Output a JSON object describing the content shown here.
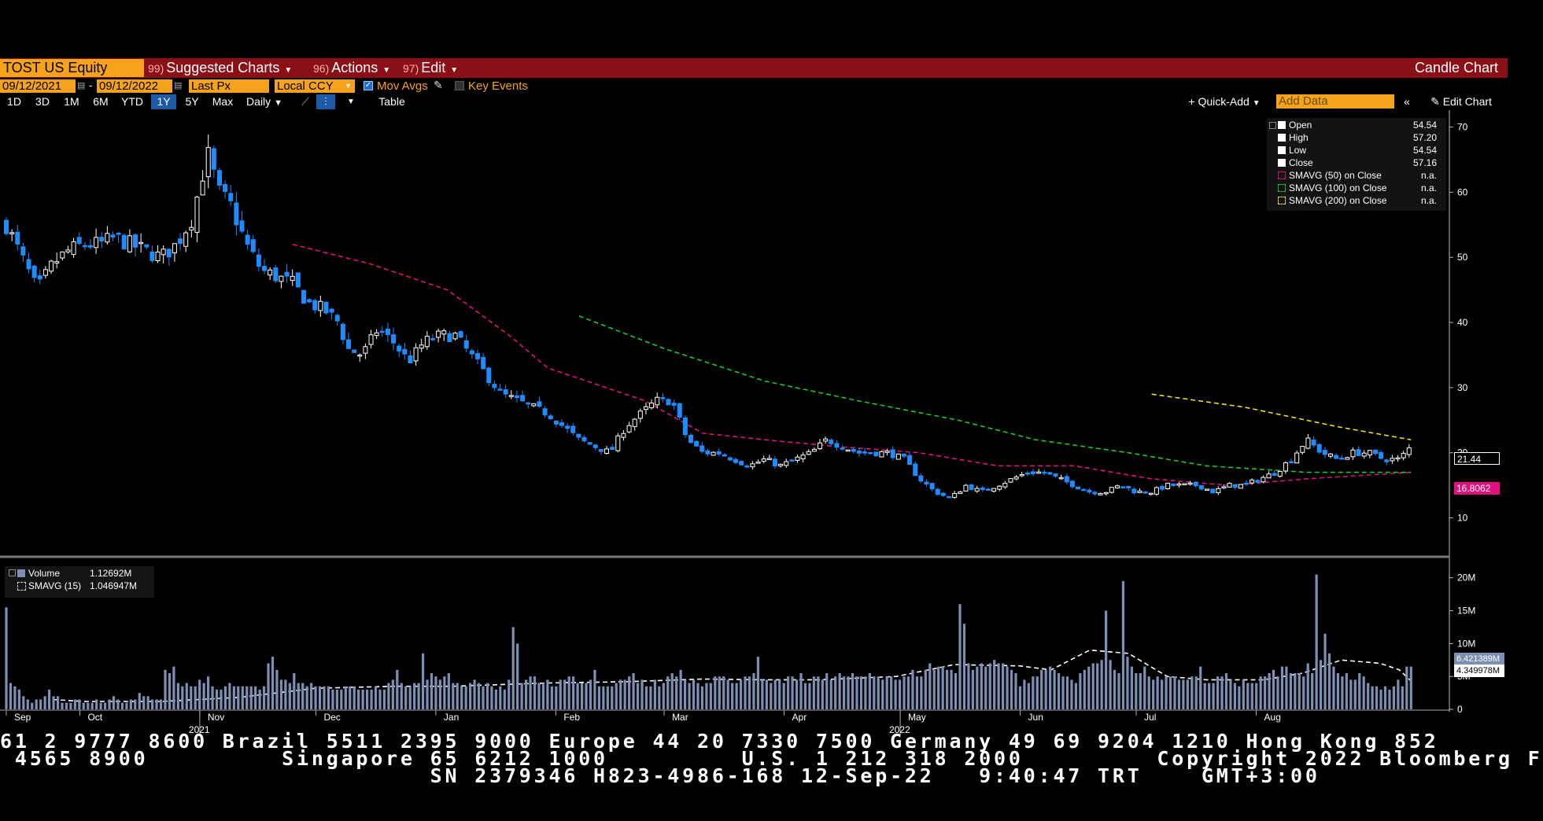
{
  "toolbar": {
    "ticker": "TOST US Equity",
    "suggested_num": "99)",
    "suggested_label": "Suggested Charts",
    "actions_num": "96)",
    "actions_label": "Actions",
    "edit_num": "97)",
    "edit_label": "Edit",
    "chart_type": "Candle Chart"
  },
  "params": {
    "start_date": "09/12/2021",
    "separator": "-",
    "end_date": "09/12/2022",
    "price_field": "Last Px",
    "currency": "Local CCY",
    "mov_avgs_label": "Mov Avgs",
    "mov_avgs_checked": true,
    "key_events_label": "Key Events",
    "key_events_checked": false
  },
  "ranges": {
    "buttons": [
      "1D",
      "3D",
      "1M",
      "6M",
      "YTD",
      "1Y",
      "5Y",
      "Max"
    ],
    "active": "1Y",
    "frequency": "Daily",
    "table_label": "Table",
    "quick_add_label": "Quick-Add",
    "add_data_placeholder": "Add Data",
    "edit_chart_label": "Edit Chart"
  },
  "legend": {
    "open_label": "Open",
    "open_value": "54.54",
    "high_label": "High",
    "high_value": "57.20",
    "low_label": "Low",
    "low_value": "54.54",
    "close_label": "Close",
    "close_value": "57.16",
    "sma50_label": "SMAVG (50)  on Close",
    "sma50_value": "n.a.",
    "sma100_label": "SMAVG (100)  on Close",
    "sma100_value": "n.a.",
    "sma200_label": "SMAVG (200)  on Close",
    "sma200_value": "n.a."
  },
  "volume_legend": {
    "volume_label": "Volume",
    "volume_value": "1.12692M",
    "smavg_label": "SMAVG (15)",
    "smavg_value": "1.046947M"
  },
  "tags": {
    "last_price": "21.44",
    "sma_value": "16.8062",
    "volume_last": "6.421389M",
    "volume_avg": "4.349978M"
  },
  "footer": {
    "line1": "61 2 9777 8600 Brazil 5511 2395 9000 Europe 44 20 7330 7500 Germany 49 69 9204 1210 Hong Kong 852",
    "line2": " 4565 8900         Singapore 65 6212 1000         U.S. 1 212 318 2000         Copyright 2022 Bloomberg F",
    "line3": "                             SN 2379346 H823-4986-168 12-Sep-22   9:40:47 TRT    GMT+3:00"
  },
  "colors": {
    "up": "#ffffff",
    "down": "#1e8cff",
    "sma50": "#e0107c",
    "sma100": "#19c82a",
    "sma200": "#f0e020",
    "volume": "#7d8fb3",
    "accent": "#f7a21b",
    "bar": "#8b0f16"
  },
  "chart_data": {
    "type": "candlestick",
    "title": "",
    "price_axis": {
      "ticks": [
        10,
        20,
        30,
        40,
        50,
        60,
        70
      ],
      "range": [
        5,
        72
      ]
    },
    "volume_axis": {
      "ticks": [
        "0",
        "5M",
        "10M",
        "15M",
        "20M"
      ],
      "tick_values": [
        0,
        5,
        10,
        15,
        20
      ],
      "range": [
        0,
        22
      ],
      "unit": "M"
    },
    "x_axis": {
      "months": [
        "Sep",
        "Oct",
        "Nov",
        "Dec",
        "Jan",
        "Feb",
        "Mar",
        "Apr",
        "May",
        "Jun",
        "Jul",
        "Aug"
      ],
      "years": [
        "2021",
        "2022"
      ],
      "month_days": [
        0,
        19,
        50,
        80,
        111,
        142,
        170,
        201,
        231,
        262,
        292,
        323
      ],
      "year_days": [
        50,
        231
      ],
      "total_days": 366
    },
    "close_series": [
      [
        0,
        55
      ],
      [
        4,
        50
      ],
      [
        8,
        45
      ],
      [
        12,
        49
      ],
      [
        16,
        51
      ],
      [
        20,
        52
      ],
      [
        24,
        52
      ],
      [
        28,
        53
      ],
      [
        32,
        52
      ],
      [
        36,
        51
      ],
      [
        40,
        50
      ],
      [
        44,
        52
      ],
      [
        48,
        56
      ],
      [
        52,
        66
      ],
      [
        55,
        60
      ],
      [
        58,
        58
      ],
      [
        62,
        52
      ],
      [
        66,
        48
      ],
      [
        70,
        47
      ],
      [
        74,
        46
      ],
      [
        78,
        43
      ],
      [
        82,
        42
      ],
      [
        86,
        40
      ],
      [
        88,
        36
      ],
      [
        92,
        35
      ],
      [
        96,
        39
      ],
      [
        100,
        37
      ],
      [
        104,
        34
      ],
      [
        108,
        37
      ],
      [
        112,
        38
      ],
      [
        116,
        38
      ],
      [
        120,
        35
      ],
      [
        124,
        32
      ],
      [
        128,
        29
      ],
      [
        132,
        28
      ],
      [
        136,
        27
      ],
      [
        140,
        26
      ],
      [
        144,
        24
      ],
      [
        148,
        22
      ],
      [
        152,
        21
      ],
      [
        156,
        20
      ],
      [
        160,
        24
      ],
      [
        164,
        26
      ],
      [
        168,
        28
      ],
      [
        172,
        28
      ],
      [
        176,
        22
      ],
      [
        180,
        20
      ],
      [
        184,
        20
      ],
      [
        188,
        19
      ],
      [
        192,
        18
      ],
      [
        196,
        19
      ],
      [
        200,
        18
      ],
      [
        204,
        19
      ],
      [
        208,
        20
      ],
      [
        212,
        22
      ],
      [
        216,
        21
      ],
      [
        220,
        20
      ],
      [
        224,
        20
      ],
      [
        228,
        20
      ],
      [
        232,
        19
      ],
      [
        236,
        16
      ],
      [
        240,
        14
      ],
      [
        244,
        13
      ],
      [
        248,
        15
      ],
      [
        252,
        14
      ],
      [
        256,
        15
      ],
      [
        260,
        16
      ],
      [
        264,
        17
      ],
      [
        268,
        17
      ],
      [
        272,
        16
      ],
      [
        276,
        15
      ],
      [
        280,
        14
      ],
      [
        284,
        14
      ],
      [
        288,
        15
      ],
      [
        292,
        14
      ],
      [
        296,
        14
      ],
      [
        300,
        15
      ],
      [
        304,
        15
      ],
      [
        308,
        15
      ],
      [
        312,
        14
      ],
      [
        316,
        15
      ],
      [
        320,
        15
      ],
      [
        324,
        16
      ],
      [
        328,
        17
      ],
      [
        332,
        19
      ],
      [
        336,
        22
      ],
      [
        340,
        20
      ],
      [
        344,
        19
      ],
      [
        348,
        20
      ],
      [
        352,
        20
      ],
      [
        356,
        19
      ],
      [
        360,
        19
      ],
      [
        363,
        21
      ]
    ],
    "sma50": [
      [
        74,
        52
      ],
      [
        94,
        49
      ],
      [
        114,
        45
      ],
      [
        130,
        38
      ],
      [
        140,
        33
      ],
      [
        150,
        31
      ],
      [
        165,
        28
      ],
      [
        180,
        23
      ],
      [
        196,
        22
      ],
      [
        214,
        21
      ],
      [
        236,
        20
      ],
      [
        256,
        18
      ],
      [
        276,
        18
      ],
      [
        296,
        16
      ],
      [
        316,
        15
      ],
      [
        336,
        16
      ],
      [
        363,
        17
      ]
    ],
    "sma100": [
      [
        148,
        41
      ],
      [
        170,
        36
      ],
      [
        196,
        31
      ],
      [
        220,
        28
      ],
      [
        246,
        25
      ],
      [
        266,
        22
      ],
      [
        290,
        20
      ],
      [
        310,
        18
      ],
      [
        336,
        17
      ],
      [
        363,
        17
      ]
    ],
    "sma200": [
      [
        296,
        29
      ],
      [
        320,
        27
      ],
      [
        344,
        24
      ],
      [
        363,
        22
      ]
    ],
    "volume": [
      15.5,
      4,
      3.5,
      3,
      2,
      1.5,
      1,
      1.5,
      1.5,
      2,
      3,
      2,
      2,
      1,
      1,
      1,
      1.5,
      1.5,
      1,
      1,
      1,
      1.5,
      1,
      1,
      1.5,
      2,
      1.5,
      1,
      1,
      1.5,
      1.5,
      2.5,
      2,
      2,
      1.5,
      1.5,
      1.5,
      6,
      5.5,
      6.5,
      4,
      3.5,
      4,
      3.5,
      3.5,
      4.5,
      4,
      5,
      3.5,
      3,
      3,
      3.5,
      4,
      3.5,
      3.5,
      3.5,
      3.5,
      3.5,
      3.5,
      3,
      3.5,
      7,
      8,
      6,
      4.5,
      4.5,
      4,
      5.5,
      4,
      4,
      3.5,
      4,
      3.5,
      3.5,
      3.5,
      3.5,
      3,
      3,
      3,
      3.5,
      3.5,
      3.5,
      3,
      3,
      3,
      3,
      3.5,
      3,
      3,
      4,
      4.5,
      6,
      4,
      3.5,
      3.5,
      4,
      4,
      8.5,
      4.5,
      5.5,
      5,
      4.5,
      5,
      5.5,
      4,
      4,
      3.5,
      3.5,
      4,
      4.5,
      4,
      3.5,
      4,
      3.5,
      3,
      3.5,
      3,
      4.5,
      12.5,
      10,
      4,
      4.5,
      5,
      5,
      4,
      4,
      4.5,
      3.5,
      3.5,
      4.5,
      4.5,
      5,
      5,
      4,
      4,
      4,
      4.5,
      6,
      3.5,
      3.5,
      3.5,
      3.5,
      4,
      4.5,
      4.5,
      5,
      5.5,
      4,
      4.5,
      3.5,
      3.5,
      4.5,
      3.5,
      4,
      5,
      5.5,
      5,
      6,
      4.5,
      4,
      4.5,
      4,
      3.5,
      4,
      4,
      5,
      5,
      5,
      4.5,
      4,
      4,
      4.5,
      5,
      5,
      5.5,
      8,
      4.5,
      4.5,
      4,
      4.5,
      4.5,
      4,
      5,
      5,
      4.5,
      5.5,
      4,
      4,
      5,
      5,
      4.5,
      5.5,
      4.5,
      5,
      5.5,
      5,
      5,
      5.5,
      5,
      5,
      5,
      5.5,
      5,
      5,
      4.5,
      5,
      5,
      4.5,
      4.5,
      5,
      5,
      6,
      5,
      5,
      6,
      7,
      6,
      6.5,
      6.5,
      6,
      6,
      5.5,
      16,
      13,
      7,
      6,
      6.5,
      7,
      6.5,
      7,
      7.5,
      7,
      7,
      6.5,
      6,
      5.5,
      3.5,
      4.5,
      4,
      5,
      5,
      6,
      6,
      6.5,
      6,
      5.5,
      5,
      5,
      4.5,
      4,
      5.5,
      6,
      6.5,
      7,
      7,
      7.5,
      15,
      7.5,
      6,
      5.5,
      19.5,
      8,
      6.5,
      5.5,
      5.5,
      6.5,
      5,
      4.5,
      5,
      4.5,
      5,
      5,
      5,
      4.5,
      4.5,
      4.5,
      5,
      5,
      6.5,
      4,
      4,
      4,
      5,
      5,
      5.5,
      4.5,
      4,
      3.5,
      4.5,
      4,
      4,
      4,
      5,
      5,
      5.5,
      6,
      5,
      6.5,
      6.5,
      5.5,
      5.5,
      5.5,
      5,
      7,
      5.5,
      20.5,
      7.5,
      11.5,
      8.5,
      6.5,
      5.5,
      5,
      5.5,
      4.5,
      4.5,
      5.5,
      5,
      4,
      3.5,
      3.5,
      3,
      3.5,
      3,
      3.5,
      4.5,
      3.5,
      6.5,
      6.5
    ],
    "volume_sma": [
      [
        12,
        1.5
      ],
      [
        20,
        1.2
      ],
      [
        40,
        1.2
      ],
      [
        60,
        1.8
      ],
      [
        80,
        3.2
      ],
      [
        100,
        3.5
      ],
      [
        115,
        3.5
      ],
      [
        140,
        4.0
      ],
      [
        160,
        4.2
      ],
      [
        180,
        4.6
      ],
      [
        195,
        4.5
      ],
      [
        210,
        4.5
      ],
      [
        230,
        5.0
      ],
      [
        245,
        6.8
      ],
      [
        262,
        6.6
      ],
      [
        270,
        6.0
      ],
      [
        280,
        9.0
      ],
      [
        290,
        8.5
      ],
      [
        300,
        5.0
      ],
      [
        310,
        4.5
      ],
      [
        325,
        4.5
      ],
      [
        335,
        5.5
      ],
      [
        345,
        7.5
      ],
      [
        355,
        7.0
      ],
      [
        360,
        6.0
      ],
      [
        363,
        4.3
      ]
    ]
  }
}
